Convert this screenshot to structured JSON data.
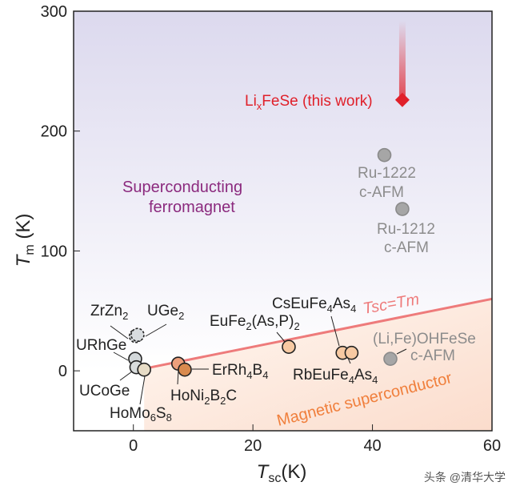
{
  "chart_data": {
    "type": "scatter",
    "xlabel": "T_sc (K)",
    "ylabel": "T_m (K)",
    "xlim": [
      -10,
      60
    ],
    "ylim": [
      -50,
      300
    ],
    "xticks": [
      0,
      20,
      40,
      60
    ],
    "yticks": [
      0,
      100,
      200,
      300
    ],
    "regions": [
      "Superconducting ferromagnet",
      "Magnetic superconductor"
    ],
    "line_label": "Tsc=Tm",
    "points": [
      {
        "name": "ZrZn2",
        "x": 0.4,
        "y": 29,
        "color": "#d8dcdf",
        "dashed": true
      },
      {
        "name": "UGe2",
        "x": 0.7,
        "y": 30,
        "color": "#d8dcdf",
        "dashed": true
      },
      {
        "name": "URhGe",
        "x": 0.3,
        "y": 10,
        "color": "#d3d8da"
      },
      {
        "name": "UCoGe",
        "x": 0.5,
        "y": 3,
        "color": "#d8dcdc"
      },
      {
        "name": "HoMo6S8",
        "x": 1.8,
        "y": 1,
        "color": "#e7dcc6"
      },
      {
        "name": "HoNi2B2C",
        "x": 7.5,
        "y": 6,
        "color": "#eea07c"
      },
      {
        "name": "ErRh4B4",
        "x": 8.6,
        "y": 1,
        "color": "#d98a4e"
      },
      {
        "name": "EuFe2(As,P)2",
        "x": 26,
        "y": 20,
        "color": "#f7c9a2"
      },
      {
        "name": "CsEuFe4As4",
        "x": 35,
        "y": 15,
        "color": "#f7c9a2"
      },
      {
        "name": "RbEuFe4As4",
        "x": 36.5,
        "y": 15,
        "color": "#f7c9a2"
      },
      {
        "name": "(Li,Fe)OHFeSe c-AFM",
        "x": 43,
        "y": 10,
        "color": "#a6a6a6"
      },
      {
        "name": "Ru-1222 c-AFM",
        "x": 42,
        "y": 180,
        "color": "#a6a6a6"
      },
      {
        "name": "Ru-1212 c-AFM",
        "x": 45,
        "y": 135,
        "color": "#a6a6a6"
      },
      {
        "name": "LixFeSe (this work)",
        "x": 45,
        "y": 226,
        "color": "#e0202a",
        "marker": "diamond"
      }
    ],
    "colors": {
      "line": "#ee7b7b",
      "sf": "#8b2a7e",
      "ms": "#f07f3c",
      "gray": "#8c8c8c",
      "red": "#e0202a"
    }
  },
  "labels": {
    "zrzn": "ZrZn",
    "ugex": "UGe",
    "urhge": "URhGe",
    "ucoge": "UCoGe",
    "homo": "HoMo",
    "homo6": "6",
    "homos": "S",
    "homo8": "8",
    "honi": "HoNi",
    "b": "B",
    "c": "C",
    "errh": "ErRh",
    "eufe": "EuFe",
    "asp": "(As,P)",
    "cseu": "CsEuFe",
    "rbeu": "RbEuFe",
    "as": "As",
    "li": "Li",
    "x": "x",
    "fese": "FeSe (this work)",
    "ru1222": "Ru-1222",
    "ru1212": "Ru-1212",
    "cafm": "c-AFM",
    "lifeoh": "(Li,Fe)OHFeSe",
    "sf1": "Superconducting",
    "sf2": "ferromagnet",
    "ms": "Magnetic superconductor",
    "tsc": "Tsc=Tm",
    "ylab_t": "T",
    "ylab_s": "m",
    "ylab_k": " (K)",
    "xlab_t": "T",
    "xlab_s": "sc",
    "xlab_k": "(K)",
    "two": "2",
    "four": "4"
  },
  "watermark": "头条 @清华大学"
}
